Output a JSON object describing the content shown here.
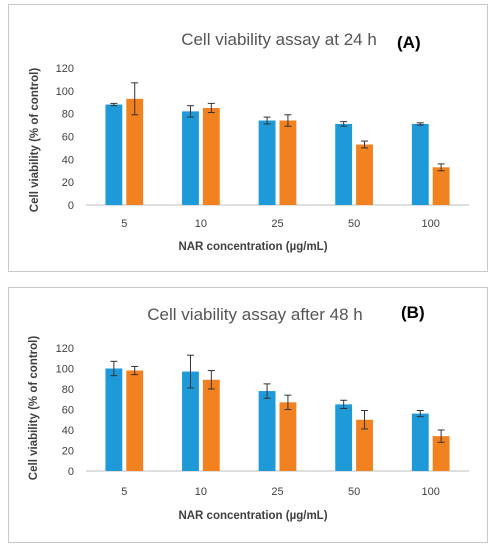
{
  "chart_data": [
    {
      "type": "bar",
      "title": "Cell viability assay at 24 h",
      "panel_tag": "(A)",
      "xlabel": "NAR concentration  (µg/mL)",
      "ylabel": "Cell viability  (% of control)",
      "ylim": [
        0,
        120
      ],
      "yticks": [
        0,
        20,
        40,
        60,
        80,
        100,
        120
      ],
      "grid": false,
      "legend": "none",
      "categories": [
        "5",
        "10",
        "25",
        "50",
        "100"
      ],
      "series": [
        {
          "color": "#1f9ad9",
          "values": [
            88,
            82,
            74,
            71,
            71
          ],
          "errors": [
            1,
            5,
            3,
            2,
            1
          ]
        },
        {
          "color": "#f28220",
          "values": [
            93,
            85,
            74,
            53,
            33
          ],
          "errors": [
            14,
            4,
            5,
            3,
            3
          ]
        }
      ]
    },
    {
      "type": "bar",
      "title": "Cell viability assay after 48 h",
      "panel_tag": "(B)",
      "xlabel": "NAR concentration  (µg/mL)",
      "ylabel": "Cell viability  (% of control)",
      "ylim": [
        0,
        120
      ],
      "yticks": [
        0,
        20,
        40,
        60,
        80,
        100,
        120
      ],
      "grid": false,
      "legend": "none",
      "categories": [
        "5",
        "10",
        "25",
        "50",
        "100"
      ],
      "series": [
        {
          "color": "#1f9ad9",
          "values": [
            100,
            97,
            78,
            65,
            56
          ],
          "errors": [
            7,
            16,
            7,
            4,
            3
          ]
        },
        {
          "color": "#f28220",
          "values": [
            98,
            89,
            67,
            50,
            34
          ],
          "errors": [
            4,
            9,
            7,
            9,
            6
          ]
        }
      ]
    }
  ]
}
